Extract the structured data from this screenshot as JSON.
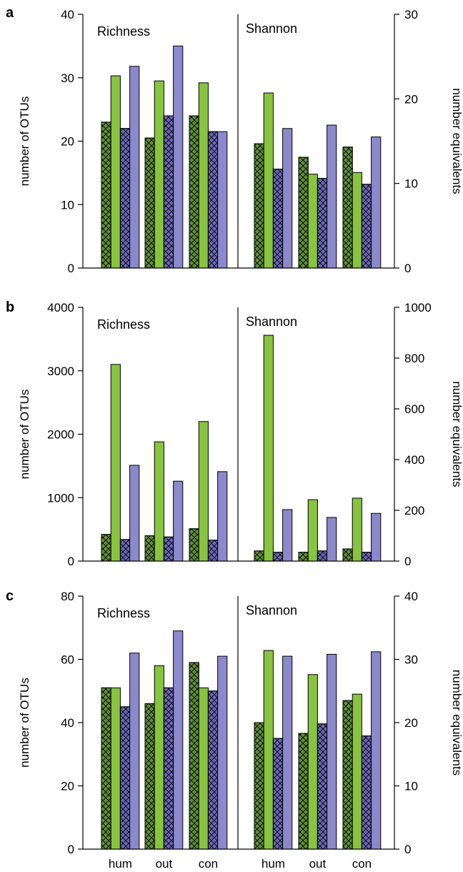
{
  "chart_data": [
    {
      "panel": "a",
      "type": "bar",
      "categories": [
        "hum",
        "out",
        "con"
      ],
      "left": {
        "label": "Richness",
        "ylabel": "number of OTUs",
        "ylim": [
          0,
          40
        ],
        "ticks": [
          0,
          10,
          20,
          30,
          40
        ],
        "series": [
          {
            "pattern": "hatched",
            "color": "green",
            "values": [
              23,
              20.5,
              24
            ]
          },
          {
            "pattern": "solid",
            "color": "green",
            "values": [
              30.3,
              29.5,
              29.2
            ]
          },
          {
            "pattern": "hatched",
            "color": "purple",
            "values": [
              22,
              24,
              21.5
            ]
          },
          {
            "pattern": "solid",
            "color": "purple",
            "values": [
              31.8,
              35,
              21.5
            ]
          }
        ]
      },
      "right": {
        "label": "Shannon",
        "ylabel": "number equivalents",
        "ylim": [
          0,
          30
        ],
        "ticks": [
          0,
          10,
          20,
          30
        ],
        "series": [
          {
            "pattern": "hatched",
            "color": "green",
            "values": [
              14.7,
              13.1,
              14.3
            ]
          },
          {
            "pattern": "solid",
            "color": "green",
            "values": [
              20.7,
              11.1,
              11.3
            ]
          },
          {
            "pattern": "hatched",
            "color": "purple",
            "values": [
              11.7,
              10.6,
              9.9
            ]
          },
          {
            "pattern": "solid",
            "color": "purple",
            "values": [
              16.5,
              16.9,
              15.5
            ]
          }
        ]
      }
    },
    {
      "panel": "b",
      "type": "bar",
      "categories": [
        "hum",
        "out",
        "con"
      ],
      "left": {
        "label": "Richness",
        "ylabel": "number of OTUs",
        "ylim": [
          0,
          4000
        ],
        "ticks": [
          0,
          1000,
          2000,
          3000,
          4000
        ],
        "series": [
          {
            "pattern": "hatched",
            "color": "green",
            "values": [
              420,
              400,
              510
            ]
          },
          {
            "pattern": "solid",
            "color": "green",
            "values": [
              3100,
              1880,
              2200
            ]
          },
          {
            "pattern": "hatched",
            "color": "purple",
            "values": [
              340,
              380,
              330
            ]
          },
          {
            "pattern": "solid",
            "color": "purple",
            "values": [
              1510,
              1260,
              1410
            ]
          }
        ]
      },
      "right": {
        "label": "Shannon",
        "ylabel": "number equivalents",
        "ylim": [
          0,
          1000
        ],
        "ticks": [
          0,
          200,
          400,
          600,
          800,
          1000
        ],
        "series": [
          {
            "pattern": "hatched",
            "color": "green",
            "values": [
              40,
              35,
              48
            ]
          },
          {
            "pattern": "solid",
            "color": "green",
            "values": [
              890,
              242,
              248
            ]
          },
          {
            "pattern": "hatched",
            "color": "purple",
            "values": [
              35,
              40,
              35
            ]
          },
          {
            "pattern": "solid",
            "color": "purple",
            "values": [
              203,
              172,
              188
            ]
          }
        ]
      }
    },
    {
      "panel": "c",
      "type": "bar",
      "categories": [
        "hum",
        "out",
        "con"
      ],
      "left": {
        "label": "Richness",
        "ylabel": "number of OTUs",
        "ylim": [
          0,
          80
        ],
        "ticks": [
          0,
          20,
          40,
          60,
          80
        ],
        "series": [
          {
            "pattern": "hatched",
            "color": "green",
            "values": [
              51,
              46,
              59
            ]
          },
          {
            "pattern": "solid",
            "color": "green",
            "values": [
              51,
              58,
              51
            ]
          },
          {
            "pattern": "hatched",
            "color": "purple",
            "values": [
              45,
              51,
              50
            ]
          },
          {
            "pattern": "solid",
            "color": "purple",
            "values": [
              62,
              69,
              61
            ]
          }
        ]
      },
      "right": {
        "label": "Shannon",
        "ylabel": "number equivalents",
        "ylim": [
          0,
          40
        ],
        "ticks": [
          0,
          10,
          20,
          30,
          40
        ],
        "series": [
          {
            "pattern": "hatched",
            "color": "green",
            "values": [
              20,
              18.3,
              23.5
            ]
          },
          {
            "pattern": "solid",
            "color": "green",
            "values": [
              31.4,
              27.6,
              24.5
            ]
          },
          {
            "pattern": "hatched",
            "color": "purple",
            "values": [
              17.5,
              19.8,
              17.9
            ]
          },
          {
            "pattern": "solid",
            "color": "purple",
            "values": [
              30.5,
              30.8,
              31.2
            ]
          }
        ]
      }
    }
  ],
  "colors": {
    "green_hatched": "#5e8f3a",
    "green_solid": "#88c43f",
    "purple_hatched": "#6a67b6",
    "purple_solid": "#8b89cc",
    "axis": "#000000"
  },
  "x_tick_labels": [
    "hum",
    "out",
    "con",
    "hum",
    "out",
    "con"
  ]
}
